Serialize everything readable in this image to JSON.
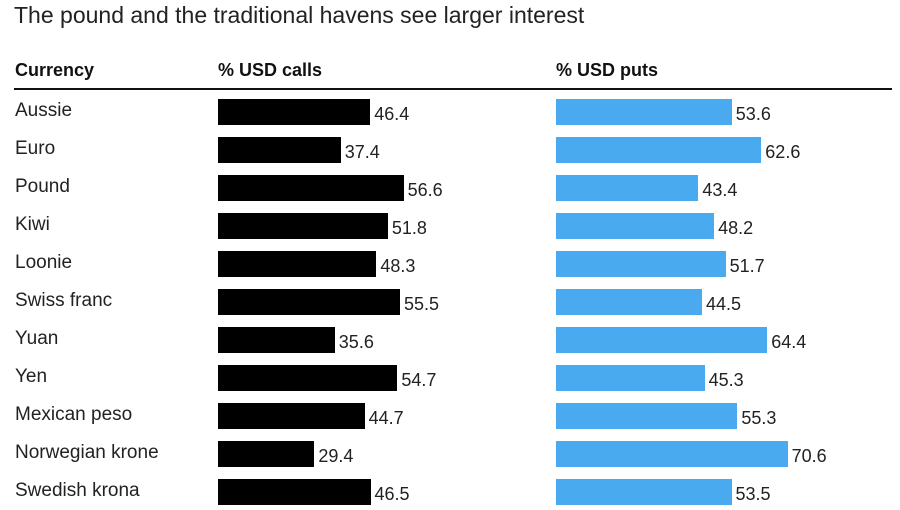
{
  "title": "The pound and the traditional havens see larger interest",
  "chart_data": {
    "type": "bar",
    "orientation": "horizontal",
    "title": "The pound and the traditional havens see larger interest",
    "column_headers": [
      "Currency",
      "% USD calls",
      "% USD puts"
    ],
    "categories": [
      "Aussie",
      "Euro",
      "Pound",
      "Kiwi",
      "Loonie",
      "Swiss franc",
      "Yuan",
      "Yen",
      "Mexican peso",
      "Norwegian krone",
      "Swedish krona"
    ],
    "series": [
      {
        "name": "% USD calls",
        "color": "#000000",
        "values": [
          46.4,
          37.4,
          56.6,
          51.8,
          48.3,
          55.5,
          35.6,
          54.7,
          44.7,
          29.4,
          46.5
        ]
      },
      {
        "name": "% USD puts",
        "color": "#4aaaf0",
        "values": [
          53.6,
          62.6,
          43.4,
          48.2,
          51.7,
          44.5,
          64.4,
          45.3,
          55.3,
          70.6,
          53.5
        ]
      }
    ],
    "value_labels": {
      "calls": [
        "46.4",
        "37.4",
        "56.6",
        "51.8",
        "48.3",
        "55.5",
        "35.6",
        "54.7",
        "44.7",
        "29.4",
        "46.5"
      ],
      "puts": [
        "53.6",
        "62.6",
        "43.4",
        "48.2",
        "51.7",
        "44.5",
        "64.4",
        "45.3",
        "55.3",
        "70.6",
        "53.5"
      ]
    },
    "xlim": [
      0,
      100
    ],
    "grid": false,
    "legend": "none"
  }
}
